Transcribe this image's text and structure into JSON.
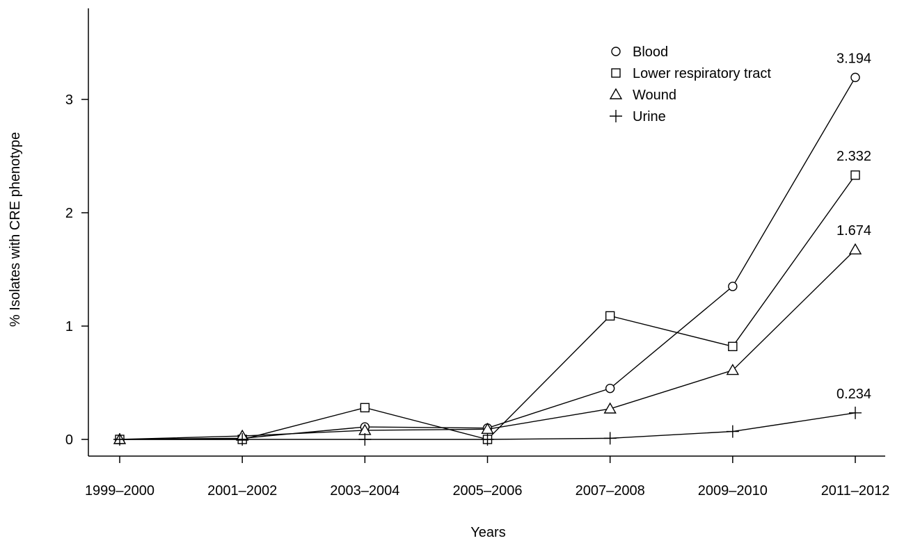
{
  "chart_data": {
    "type": "line",
    "title": "",
    "xlabel": "Years",
    "ylabel": "% Isolates with CRE phenotype",
    "categories": [
      "1999–2000",
      "2001–2002",
      "2003–2004",
      "2005–2006",
      "2007–2008",
      "2009–2010",
      "2011–2012"
    ],
    "yticks": [
      0,
      1,
      2,
      3
    ],
    "ylim": [
      -0.15,
      3.9
    ],
    "grid": false,
    "legend_position": "top-right",
    "series": [
      {
        "name": "Blood",
        "marker": "circle",
        "values": [
          0,
          0.01,
          0.11,
          0.1,
          0.45,
          1.35,
          3.194
        ]
      },
      {
        "name": "Lower respiratory tract",
        "marker": "square",
        "values": [
          0,
          0,
          0.28,
          0,
          1.09,
          0.82,
          2.332
        ]
      },
      {
        "name": "Wound",
        "marker": "triangle",
        "values": [
          0,
          0.03,
          0.08,
          0.09,
          0.27,
          0.61,
          1.674
        ]
      },
      {
        "name": "Urine",
        "marker": "plus",
        "values": [
          0,
          0,
          0,
          0,
          0.01,
          0.07,
          0.234
        ]
      }
    ],
    "data_labels": [
      "3.194",
      "2.332",
      "1.674",
      "0.234"
    ]
  }
}
